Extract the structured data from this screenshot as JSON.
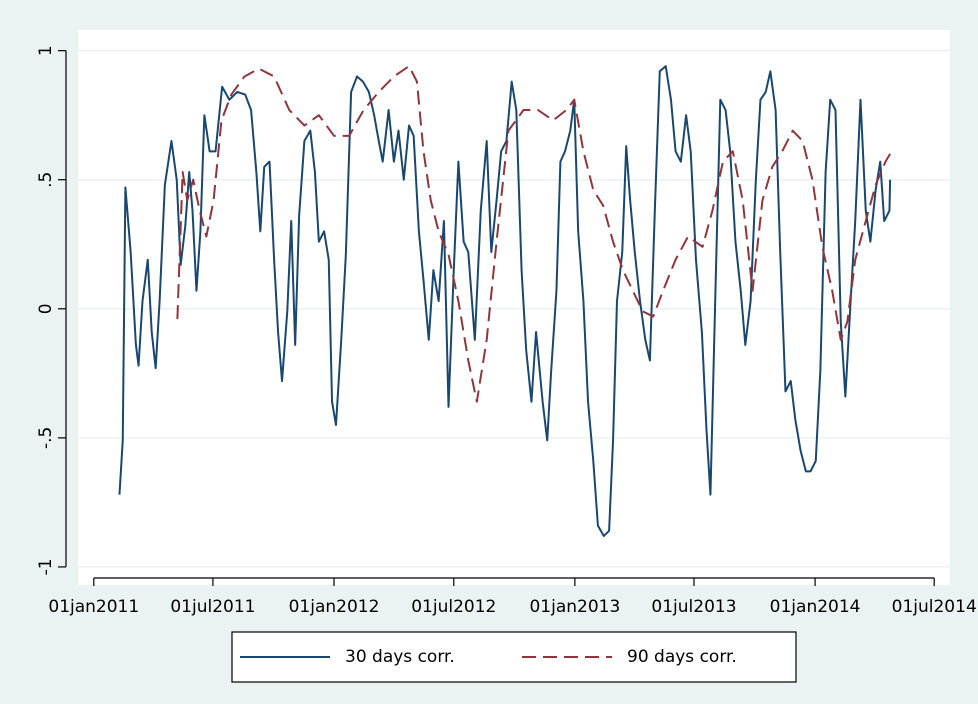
{
  "chart_data": {
    "type": "line",
    "xlim": [
      "2010-12-08",
      "2014-07-25"
    ],
    "xticks": [
      {
        "value": "2011-01-01",
        "label": "01jan2011"
      },
      {
        "value": "2011-07-01",
        "label": "01jul2011"
      },
      {
        "value": "2012-01-01",
        "label": "01jan2012"
      },
      {
        "value": "2012-07-01",
        "label": "01jul2012"
      },
      {
        "value": "2013-01-01",
        "label": "01jan2013"
      },
      {
        "value": "2013-07-01",
        "label": "01jul2013"
      },
      {
        "value": "2014-01-01",
        "label": "01jan2014"
      },
      {
        "value": "2014-07-01",
        "label": "01jul2014"
      }
    ],
    "ylim": [
      -1.07,
      1.08
    ],
    "yticks": [
      -1,
      {
        "value": -0.5,
        "label": "-.5"
      },
      0,
      {
        "value": 0.5,
        "label": ".5"
      },
      1
    ],
    "grid": true,
    "legend": "bottom",
    "series": [
      {
        "name": "30 days corr.",
        "color": "#1a476f",
        "dash": false,
        "x": [
          "2011-02-09",
          "2011-02-14",
          "2011-02-18",
          "2011-02-26",
          "2011-03-06",
          "2011-03-10",
          "2011-03-16",
          "2011-03-24",
          "2011-03-30",
          "2011-04-05",
          "2011-04-11",
          "2011-04-19",
          "2011-04-29",
          "2011-05-07",
          "2011-05-13",
          "2011-05-20",
          "2011-05-26",
          "2011-05-31",
          "2011-06-06",
          "2011-06-12",
          "2011-06-18",
          "2011-06-26",
          "2011-07-05",
          "2011-07-15",
          "2011-07-26",
          "2011-08-07",
          "2011-08-19",
          "2011-08-28",
          "2011-09-05",
          "2011-09-11",
          "2011-09-17",
          "2011-09-25",
          "2011-10-02",
          "2011-10-08",
          "2011-10-14",
          "2011-10-22",
          "2011-10-28",
          "2011-11-03",
          "2011-11-09",
          "2011-11-17",
          "2011-11-26",
          "2011-12-03",
          "2011-12-09",
          "2011-12-17",
          "2011-12-24",
          "2011-12-29",
          "2012-01-04",
          "2012-01-12",
          "2012-01-19",
          "2012-01-27",
          "2012-02-05",
          "2012-02-14",
          "2012-02-23",
          "2012-03-02",
          "2012-03-09",
          "2012-03-15",
          "2012-03-24",
          "2012-04-01",
          "2012-04-08",
          "2012-04-16",
          "2012-04-24",
          "2012-05-01",
          "2012-05-09",
          "2012-05-16",
          "2012-05-24",
          "2012-05-31",
          "2012-06-08",
          "2012-06-16",
          "2012-06-23",
          "2012-07-01",
          "2012-07-08",
          "2012-07-16",
          "2012-07-23",
          "2012-08-02",
          "2012-08-11",
          "2012-08-20",
          "2012-08-27",
          "2012-09-04",
          "2012-09-11",
          "2012-09-19",
          "2012-09-27",
          "2012-10-04",
          "2012-10-12",
          "2012-10-19",
          "2012-10-27",
          "2012-11-03",
          "2012-11-13",
          "2012-11-20",
          "2012-11-26",
          "2012-12-04",
          "2012-12-10",
          "2012-12-17",
          "2012-12-25",
          "2012-12-31",
          "2013-01-06",
          "2013-01-14",
          "2013-01-21",
          "2013-01-29",
          "2013-02-05",
          "2013-02-14",
          "2013-02-22",
          "2013-02-28",
          "2013-03-06",
          "2013-03-14",
          "2013-03-20",
          "2013-03-26",
          "2013-04-02",
          "2013-04-10",
          "2013-04-18",
          "2013-04-25",
          "2013-05-03",
          "2013-05-10",
          "2013-05-19",
          "2013-05-27",
          "2013-06-03",
          "2013-06-11",
          "2013-06-19",
          "2013-06-26",
          "2013-07-04",
          "2013-07-13",
          "2013-07-20",
          "2013-07-26",
          "2013-08-03",
          "2013-08-10",
          "2013-08-18",
          "2013-08-25",
          "2013-09-02",
          "2013-09-10",
          "2013-09-17",
          "2013-09-25",
          "2013-10-03",
          "2013-10-10",
          "2013-10-18",
          "2013-10-25",
          "2013-11-02",
          "2013-11-09",
          "2013-11-17",
          "2013-11-25",
          "2013-12-02",
          "2013-12-10",
          "2013-12-18",
          "2013-12-25",
          "2014-01-02",
          "2014-01-09",
          "2014-01-17",
          "2014-01-24",
          "2014-02-01",
          "2014-02-09",
          "2014-02-16",
          "2014-02-24",
          "2014-03-03",
          "2014-03-11",
          "2014-03-19",
          "2014-03-26",
          "2014-04-03",
          "2014-04-10",
          "2014-04-16",
          "2014-04-24",
          "2014-04-25"
        ],
        "values": [
          -0.72,
          -0.51,
          0.47,
          0.22,
          -0.14,
          -0.22,
          0.03,
          0.19,
          -0.09,
          -0.23,
          0.03,
          0.48,
          0.65,
          0.5,
          0.17,
          0.32,
          0.53,
          0.38,
          0.07,
          0.3,
          0.75,
          0.61,
          0.61,
          0.86,
          0.81,
          0.84,
          0.83,
          0.77,
          0.53,
          0.3,
          0.55,
          0.57,
          0.19,
          -0.09,
          -0.28,
          -0.01,
          0.34,
          -0.14,
          0.36,
          0.65,
          0.69,
          0.53,
          0.26,
          0.3,
          0.19,
          -0.36,
          -0.45,
          -0.12,
          0.21,
          0.84,
          0.9,
          0.88,
          0.84,
          0.75,
          0.65,
          0.57,
          0.77,
          0.57,
          0.69,
          0.5,
          0.71,
          0.67,
          0.3,
          0.11,
          -0.12,
          0.15,
          0.03,
          0.34,
          -0.38,
          0.15,
          0.57,
          0.26,
          0.22,
          -0.12,
          0.38,
          0.65,
          0.22,
          0.42,
          0.61,
          0.65,
          0.88,
          0.77,
          0.15,
          -0.16,
          -0.36,
          -0.09,
          -0.36,
          -0.51,
          -0.24,
          0.07,
          0.57,
          0.61,
          0.69,
          0.81,
          0.3,
          0.03,
          -0.36,
          -0.59,
          -0.84,
          -0.88,
          -0.86,
          -0.51,
          0.03,
          0.22,
          0.63,
          0.42,
          0.22,
          0.03,
          -0.12,
          -0.2,
          0.42,
          0.92,
          0.94,
          0.81,
          0.61,
          0.57,
          0.75,
          0.61,
          0.19,
          -0.09,
          -0.47,
          -0.72,
          0.11,
          0.81,
          0.77,
          0.61,
          0.26,
          0.07,
          -0.14,
          0.03,
          0.5,
          0.81,
          0.84,
          0.92,
          0.77,
          0.22,
          -0.32,
          -0.28,
          -0.43,
          -0.55,
          -0.63,
          -0.63,
          -0.59,
          -0.24,
          0.53,
          0.81,
          0.77,
          -0.05,
          -0.34,
          0.03,
          0.34,
          0.81,
          0.38,
          0.26,
          0.46,
          0.57,
          0.34,
          0.38,
          0.5
        ]
      },
      {
        "name": "90 days corr.",
        "color": "#90353b",
        "dash": true,
        "x": [
          "2011-05-08",
          "2011-05-16",
          "2011-05-23",
          "2011-06-01",
          "2011-06-11",
          "2011-06-21",
          "2011-07-02",
          "2011-07-14",
          "2011-07-29",
          "2011-08-18",
          "2011-09-09",
          "2011-10-02",
          "2011-10-25",
          "2011-11-17",
          "2011-12-09",
          "2012-01-01",
          "2012-01-24",
          "2012-02-15",
          "2012-03-09",
          "2012-04-01",
          "2012-04-24",
          "2012-05-06",
          "2012-05-16",
          "2012-05-27",
          "2012-06-08",
          "2012-06-23",
          "2012-07-08",
          "2012-07-23",
          "2012-08-05",
          "2012-08-20",
          "2012-09-04",
          "2012-09-22",
          "2012-10-15",
          "2012-11-06",
          "2012-11-29",
          "2012-12-19",
          "2012-12-31",
          "2013-01-14",
          "2013-01-29",
          "2013-02-13",
          "2013-02-28",
          "2013-03-15",
          "2013-03-30",
          "2013-04-14",
          "2013-04-30",
          "2013-05-15",
          "2013-06-03",
          "2013-06-22",
          "2013-07-14",
          "2013-07-29",
          "2013-08-14",
          "2013-08-29",
          "2013-09-13",
          "2013-09-28",
          "2013-10-13",
          "2013-10-28",
          "2013-11-12",
          "2013-11-28",
          "2013-12-13",
          "2013-12-28",
          "2014-01-12",
          "2014-01-27",
          "2014-02-09",
          "2014-02-19",
          "2014-03-03",
          "2014-03-19",
          "2014-04-03",
          "2014-04-18",
          "2014-04-25"
        ],
        "values": [
          -0.04,
          0.53,
          0.42,
          0.5,
          0.38,
          0.28,
          0.42,
          0.73,
          0.83,
          0.9,
          0.93,
          0.9,
          0.77,
          0.71,
          0.75,
          0.67,
          0.67,
          0.77,
          0.84,
          0.9,
          0.94,
          0.88,
          0.61,
          0.42,
          0.3,
          0.21,
          0.03,
          -0.2,
          -0.36,
          -0.12,
          0.26,
          0.69,
          0.77,
          0.77,
          0.73,
          0.77,
          0.81,
          0.61,
          0.46,
          0.4,
          0.26,
          0.15,
          0.07,
          -0.01,
          -0.03,
          0.07,
          0.19,
          0.28,
          0.24,
          0.38,
          0.57,
          0.61,
          0.42,
          0.07,
          0.42,
          0.55,
          0.61,
          0.69,
          0.65,
          0.5,
          0.24,
          0.07,
          -0.12,
          -0.05,
          0.19,
          0.34,
          0.48,
          0.57,
          0.6
        ]
      }
    ]
  }
}
